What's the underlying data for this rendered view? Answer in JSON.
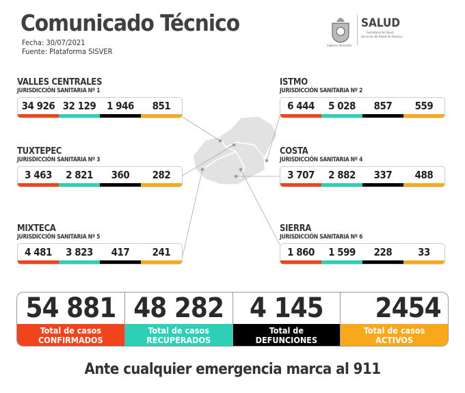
{
  "header": {
    "title": "Comunicado Técnico",
    "date": "Fecha: 30/07/2021",
    "source": "Fuente: Plataforma SISVER"
  },
  "logo": {
    "text": "SALUD",
    "line1": "Secretaría de Salud",
    "line2": "Servicios de Salud de Oaxaca",
    "gov": "Gobierno del Estado"
  },
  "colors": {
    "confirmados": "#f0441c",
    "recuperados": "#2ecfb7",
    "defunciones": "#000000",
    "activos": "#f7a81b"
  },
  "regions": [
    {
      "name": "VALLES CENTRALES",
      "jurisdiction": "JURISDICCIÓN SANITARIA Nº 1",
      "values": [
        "34 926",
        "32 129",
        "1 946",
        "851"
      ]
    },
    {
      "name": "ISTMO",
      "jurisdiction": "JURISDICCIÓN SANITARIA Nº 2",
      "values": [
        "6 444",
        "5 028",
        "857",
        "559"
      ]
    },
    {
      "name": "TUXTEPEC",
      "jurisdiction": "JURISDICCIÓN SANITARIA Nº 3",
      "values": [
        "3 463",
        "2 821",
        "360",
        "282"
      ]
    },
    {
      "name": "COSTA",
      "jurisdiction": "JURISDICCIÓN SANITARIA Nº 4",
      "values": [
        "3 707",
        "2 882",
        "337",
        "488"
      ]
    },
    {
      "name": "MIXTECA",
      "jurisdiction": "JURISDICCIÓN SANITARIA Nº 5",
      "values": [
        "4 481",
        "3 823",
        "417",
        "241"
      ]
    },
    {
      "name": "SIERRA",
      "jurisdiction": "JURISDICCIÓN SANITARIA Nº 6",
      "values": [
        "1 860",
        "1 599",
        "228",
        "33"
      ]
    }
  ],
  "totals": [
    {
      "value": "54 881",
      "line1": "Total de casos",
      "line2": "CONFIRMADOS"
    },
    {
      "value": "48 282",
      "line1": "Total de casos",
      "line2": "RECUPERADOS"
    },
    {
      "value": "4 145",
      "line1": "Total de",
      "line2": "DEFUNCIONES"
    },
    {
      "value": "2454",
      "line1": "Total de casos",
      "line2": "ACTIVOS"
    }
  ],
  "footer": "Ante cualquier emergencia marca al 911"
}
